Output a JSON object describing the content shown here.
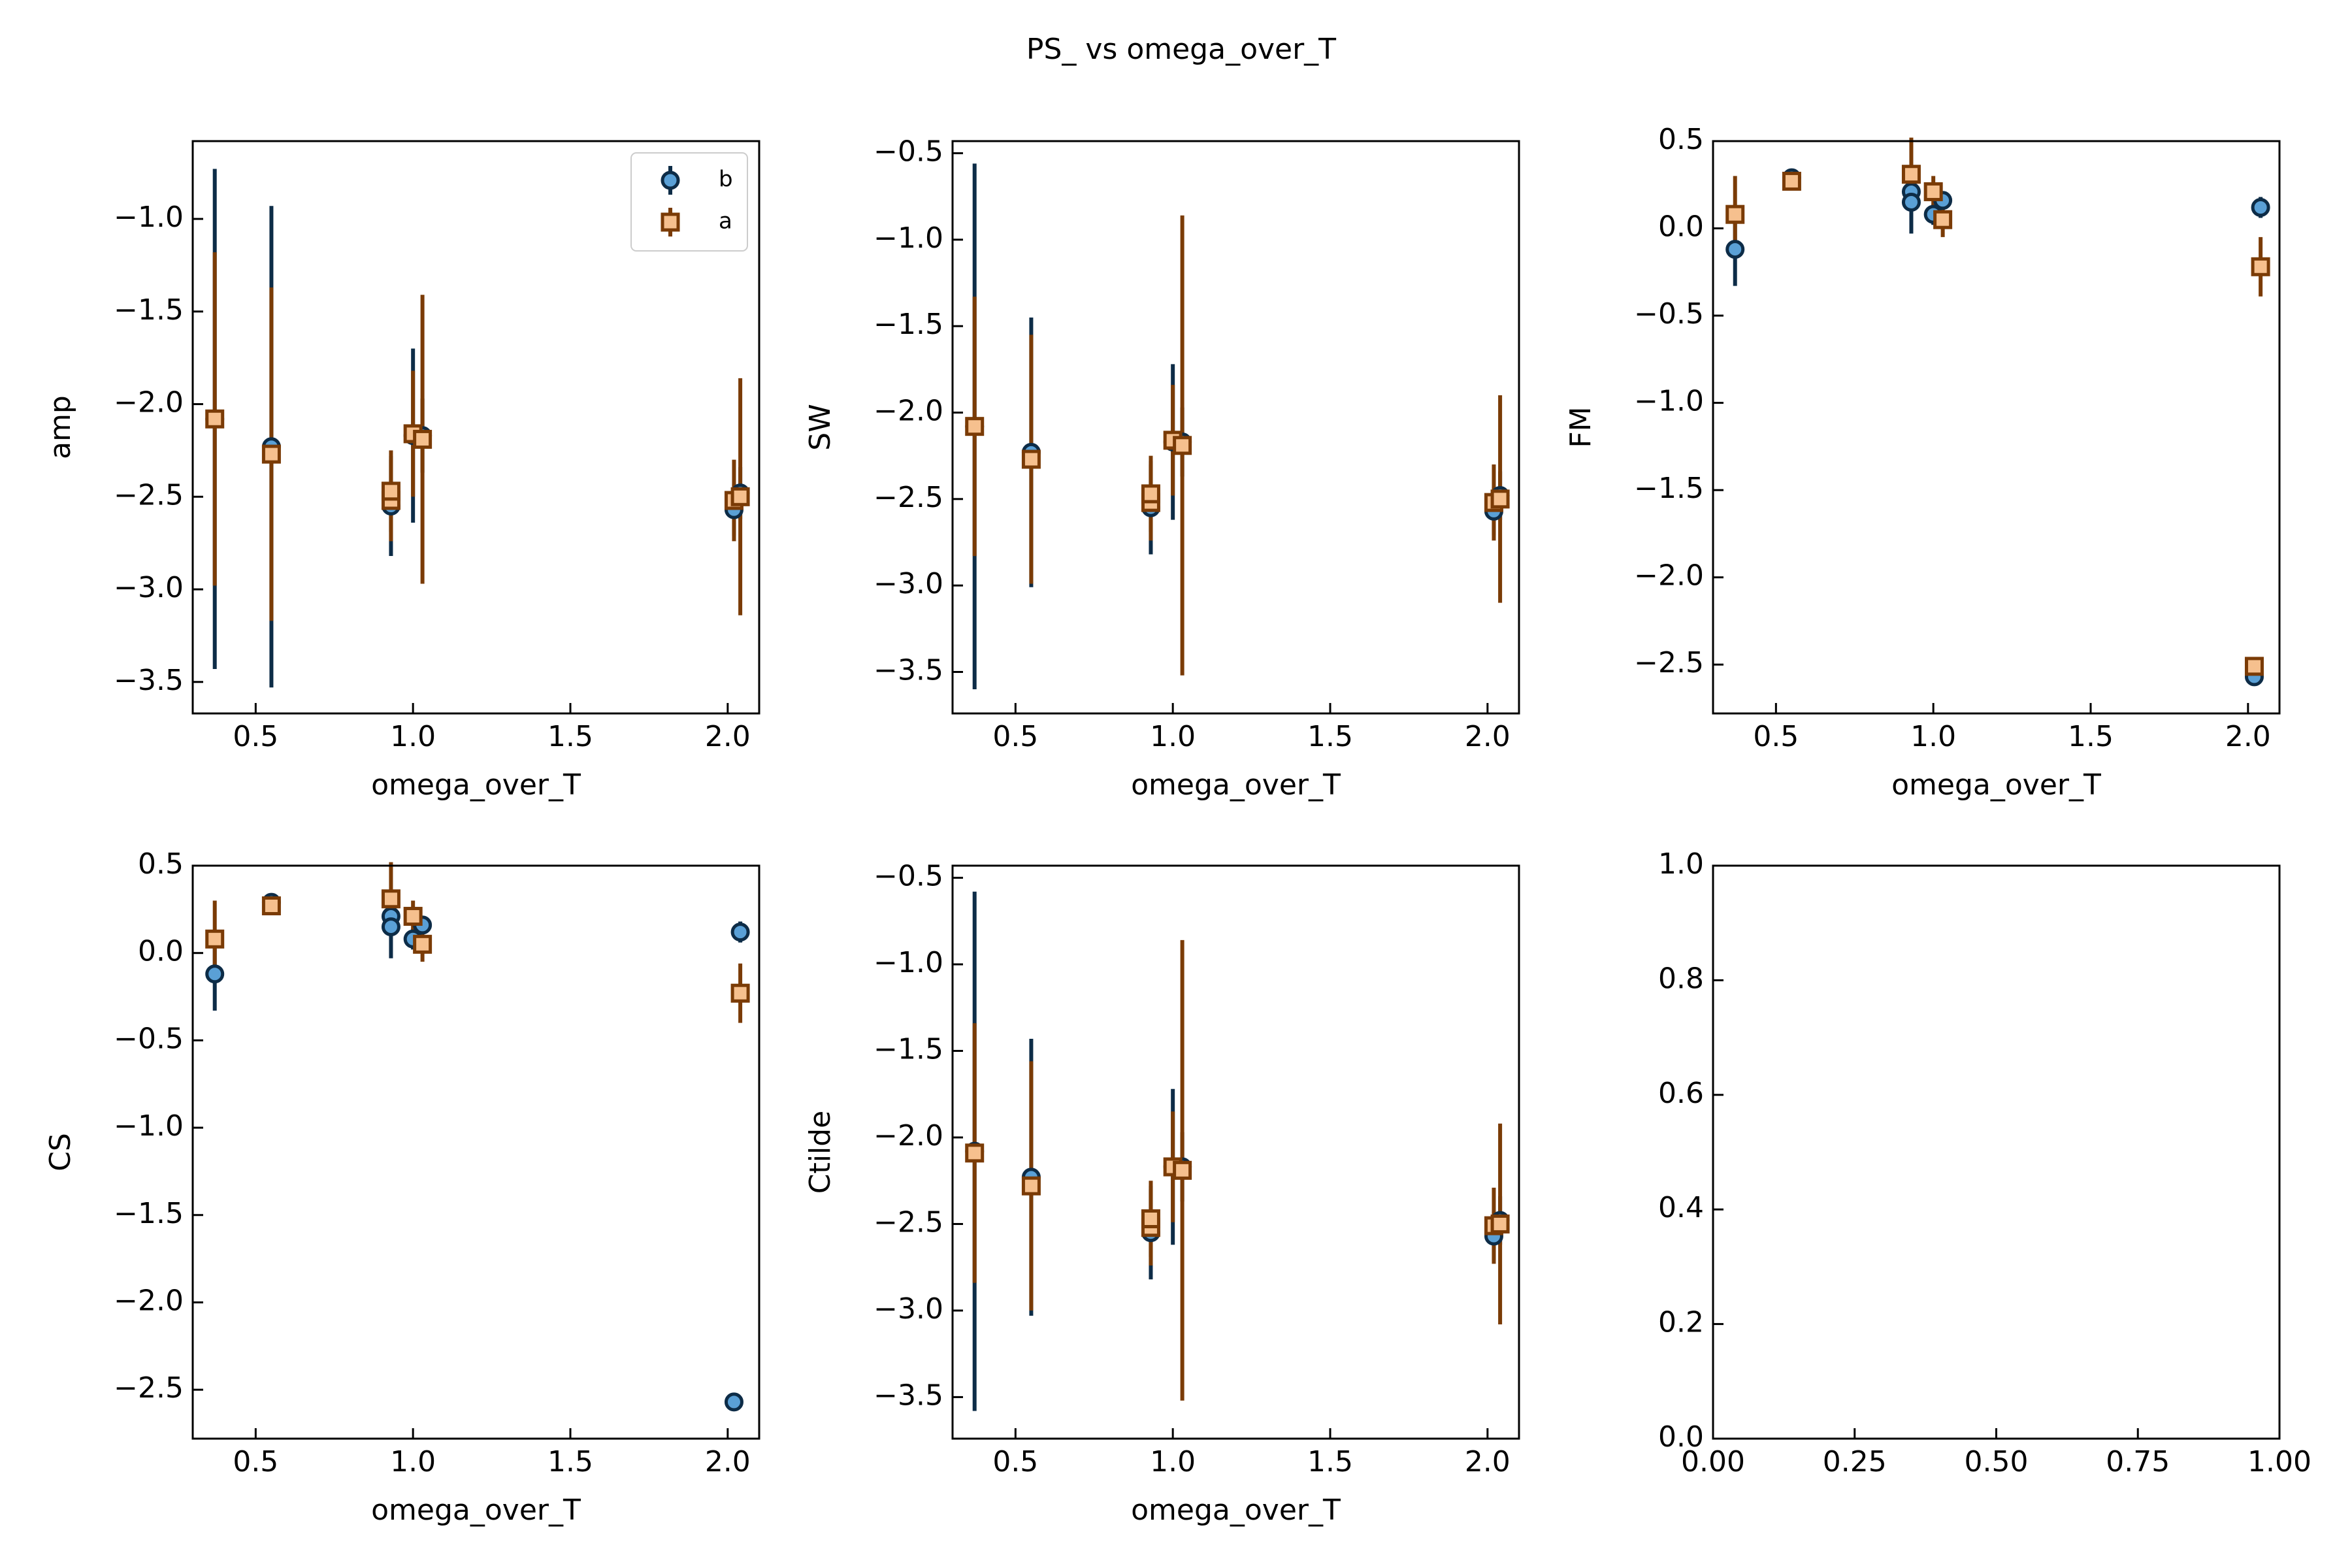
{
  "figure": {
    "title": "PS_ vs omega_over_T"
  },
  "colors": {
    "b_face": "#5aa0d6",
    "b_edge": "#0d2c47",
    "a_face": "#f6c08e",
    "a_edge": "#7a3b06"
  },
  "chart_data": [
    {
      "type": "scatter",
      "panel": "amp",
      "title": "",
      "xlabel": "omega_over_T",
      "ylabel": "amp",
      "xlim": [
        0.3,
        2.1
      ],
      "ylim": [
        -3.67,
        -0.58
      ],
      "xticks": [
        0.5,
        1.0,
        1.5,
        2.0
      ],
      "xticklabels": [
        "0.5",
        "1.0",
        "1.5",
        "2.0"
      ],
      "yticks": [
        -3.5,
        -3.0,
        -2.5,
        -2.0,
        -1.5,
        -1.0
      ],
      "yticklabels": [
        "−3.5",
        "−3.0",
        "−2.5",
        "−2.0",
        "−1.5",
        "−1.0"
      ],
      "legend": {
        "location": "upper right",
        "entries": [
          "b",
          "a"
        ]
      },
      "series": [
        {
          "name": "b",
          "marker": "circle",
          "x": [
            0.37,
            0.55,
            0.93,
            1.0,
            1.03,
            2.02,
            2.04
          ],
          "y": [
            -2.08,
            -2.23,
            -2.55,
            -2.17,
            -2.17,
            -2.57,
            -2.48
          ],
          "yerr": [
            1.35,
            1.3,
            0.27,
            0.47,
            0.2,
            0.14,
            0.14
          ]
        },
        {
          "name": "a",
          "marker": "square",
          "x": [
            0.37,
            0.55,
            0.93,
            0.93,
            1.0,
            1.03,
            2.02,
            2.04
          ],
          "y": [
            -2.08,
            -2.27,
            -2.52,
            -2.47,
            -2.16,
            -2.19,
            -2.52,
            -2.5
          ],
          "yerr": [
            0.9,
            0.9,
            0.22,
            0.22,
            0.34,
            0.78,
            0.22,
            0.64
          ]
        }
      ]
    },
    {
      "type": "scatter",
      "panel": "SW",
      "title": "",
      "xlabel": "omega_over_T",
      "ylabel": "SW",
      "xlim": [
        0.3,
        2.1
      ],
      "ylim": [
        -3.74,
        -0.43
      ],
      "xticks": [
        0.5,
        1.0,
        1.5,
        2.0
      ],
      "xticklabels": [
        "0.5",
        "1.0",
        "1.5",
        "2.0"
      ],
      "yticks": [
        -3.5,
        -3.0,
        -2.5,
        -2.0,
        -1.5,
        -1.0,
        -0.5
      ],
      "yticklabels": [
        "−3.5",
        "−3.0",
        "−2.5",
        "−2.0",
        "−1.5",
        "−1.0",
        "−0.5"
      ],
      "series": [
        {
          "name": "b",
          "marker": "circle",
          "x": [
            0.37,
            0.55,
            0.93,
            1.0,
            1.03,
            2.02,
            2.04
          ],
          "y": [
            -2.08,
            -2.23,
            -2.55,
            -2.17,
            -2.17,
            -2.57,
            -2.48
          ],
          "yerr": [
            1.52,
            0.78,
            0.27,
            0.45,
            0.2,
            0.14,
            0.14
          ]
        },
        {
          "name": "a",
          "marker": "square",
          "x": [
            0.37,
            0.55,
            0.93,
            0.93,
            1.0,
            1.03,
            2.02,
            2.04
          ],
          "y": [
            -2.08,
            -2.27,
            -2.52,
            -2.47,
            -2.16,
            -2.19,
            -2.52,
            -2.5
          ],
          "yerr": [
            0.75,
            0.72,
            0.22,
            0.22,
            0.32,
            1.33,
            0.22,
            0.6
          ]
        }
      ]
    },
    {
      "type": "scatter",
      "panel": "FM",
      "title": "",
      "xlabel": "omega_over_T",
      "ylabel": "FM",
      "xlim": [
        0.3,
        2.1
      ],
      "ylim": [
        -2.78,
        0.5
      ],
      "xticks": [
        0.5,
        1.0,
        1.5,
        2.0
      ],
      "xticklabels": [
        "0.5",
        "1.0",
        "1.5",
        "2.0"
      ],
      "yticks": [
        -2.5,
        -2.0,
        -1.5,
        -1.0,
        -0.5,
        0.0,
        0.5
      ],
      "yticklabels": [
        "−2.5",
        "−2.0",
        "−1.5",
        "−1.0",
        "−0.5",
        "0.0",
        "0.5"
      ],
      "series": [
        {
          "name": "b",
          "marker": "circle",
          "x": [
            0.37,
            0.55,
            0.93,
            0.93,
            1.0,
            1.03,
            2.02,
            2.04
          ],
          "y": [
            -0.12,
            0.29,
            0.21,
            0.15,
            0.08,
            0.16,
            -2.57,
            0.12
          ],
          "yerr": [
            0.21,
            0.05,
            0.06,
            0.18,
            0.06,
            0.05,
            0.02,
            0.06
          ]
        },
        {
          "name": "a",
          "marker": "square",
          "x": [
            0.37,
            0.55,
            0.93,
            1.0,
            1.03,
            2.02,
            2.04
          ],
          "y": [
            0.08,
            0.27,
            0.31,
            0.21,
            0.05,
            -2.51,
            -0.22
          ],
          "yerr": [
            0.22,
            0.04,
            0.21,
            0.09,
            0.1,
            0.05,
            0.17
          ]
        }
      ]
    },
    {
      "type": "scatter",
      "panel": "CS",
      "title": "",
      "xlabel": "omega_over_T",
      "ylabel": "CS",
      "xlim": [
        0.3,
        2.1
      ],
      "ylim": [
        -2.78,
        0.5
      ],
      "xticks": [
        0.5,
        1.0,
        1.5,
        2.0
      ],
      "xticklabels": [
        "0.5",
        "1.0",
        "1.5",
        "2.0"
      ],
      "yticks": [
        -2.5,
        -2.0,
        -1.5,
        -1.0,
        -0.5,
        0.0,
        0.5
      ],
      "yticklabels": [
        "−2.5",
        "−2.0",
        "−1.5",
        "−1.0",
        "−0.5",
        "0.0",
        "0.5"
      ],
      "series": [
        {
          "name": "b",
          "marker": "circle",
          "x": [
            0.37,
            0.55,
            0.93,
            0.93,
            1.0,
            1.03,
            2.02,
            2.04
          ],
          "y": [
            -0.12,
            0.29,
            0.21,
            0.15,
            0.08,
            0.16,
            -2.57,
            0.12
          ],
          "yerr": [
            0.21,
            0.05,
            0.06,
            0.18,
            0.06,
            0.05,
            0.02,
            0.06
          ]
        },
        {
          "name": "a",
          "marker": "square",
          "x": [
            0.37,
            0.55,
            0.93,
            1.0,
            1.03,
            2.04
          ],
          "y": [
            0.08,
            0.27,
            0.31,
            0.21,
            0.05,
            -0.23
          ],
          "yerr": [
            0.22,
            0.04,
            0.21,
            0.09,
            0.1,
            0.17
          ]
        }
      ]
    },
    {
      "type": "scatter",
      "panel": "Ctilde",
      "title": "",
      "xlabel": "omega_over_T",
      "ylabel": "Ctilde",
      "xlim": [
        0.3,
        2.1
      ],
      "ylim": [
        -3.74,
        -0.43
      ],
      "xticks": [
        0.5,
        1.0,
        1.5,
        2.0
      ],
      "xticklabels": [
        "0.5",
        "1.0",
        "1.5",
        "2.0"
      ],
      "yticks": [
        -3.5,
        -3.0,
        -2.5,
        -2.0,
        -1.5,
        -1.0,
        -0.5
      ],
      "yticklabels": [
        "−3.5",
        "−3.0",
        "−2.5",
        "−2.0",
        "−1.5",
        "−1.0",
        "−0.5"
      ],
      "series": [
        {
          "name": "b",
          "marker": "circle",
          "x": [
            0.37,
            0.55,
            0.93,
            1.0,
            1.03,
            2.02,
            2.04
          ],
          "y": [
            -2.08,
            -2.23,
            -2.55,
            -2.17,
            -2.17,
            -2.57,
            -2.48
          ],
          "yerr": [
            1.5,
            0.8,
            0.27,
            0.45,
            0.2,
            0.14,
            0.14
          ]
        },
        {
          "name": "a",
          "marker": "square",
          "x": [
            0.37,
            0.55,
            0.93,
            0.93,
            1.0,
            1.03,
            2.02,
            2.04
          ],
          "y": [
            -2.09,
            -2.28,
            -2.52,
            -2.47,
            -2.17,
            -2.19,
            -2.51,
            -2.5
          ],
          "yerr": [
            0.75,
            0.72,
            0.22,
            0.22,
            0.32,
            1.33,
            0.22,
            0.58
          ]
        }
      ]
    },
    {
      "type": "scatter",
      "panel": "empty",
      "title": "",
      "xlabel": "",
      "ylabel": "",
      "xlim": [
        0.0,
        1.0
      ],
      "ylim": [
        0.0,
        1.0
      ],
      "xticks": [
        0.0,
        0.25,
        0.5,
        0.75,
        1.0
      ],
      "xticklabels": [
        "0.00",
        "0.25",
        "0.50",
        "0.75",
        "1.00"
      ],
      "yticks": [
        0.0,
        0.2,
        0.4,
        0.6,
        0.8,
        1.0
      ],
      "yticklabels": [
        "0.0",
        "0.2",
        "0.4",
        "0.6",
        "0.8",
        "1.0"
      ],
      "series": []
    }
  ]
}
